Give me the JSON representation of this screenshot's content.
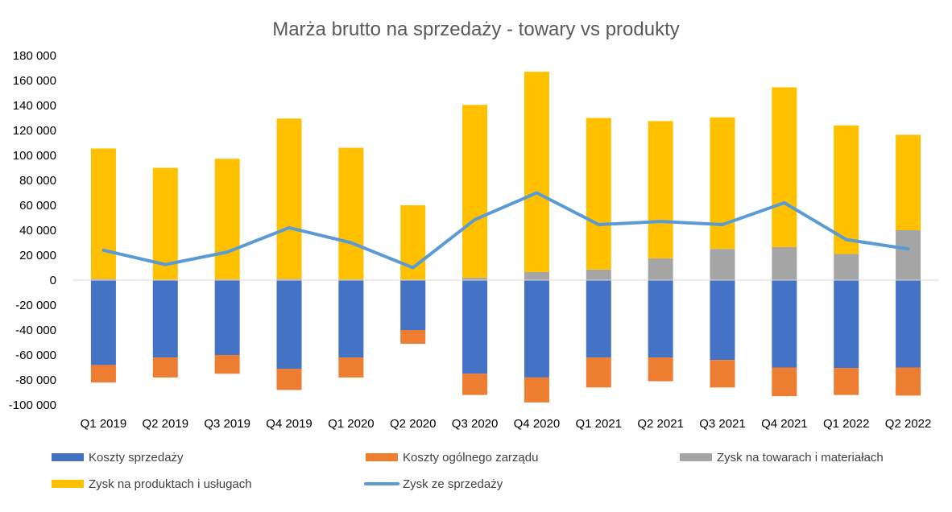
{
  "chart_data": {
    "type": "bar",
    "stacked": true,
    "title": "Marża brutto na sprzedaży - towary vs produkty",
    "xlabel": "",
    "ylabel": "",
    "ylim": [
      -100000,
      180000
    ],
    "yticks": [
      180000,
      160000,
      140000,
      120000,
      100000,
      80000,
      60000,
      40000,
      20000,
      0,
      -20000,
      -40000,
      -60000,
      -80000,
      -100000
    ],
    "ytick_labels": [
      "180 000",
      "160 000",
      "140 000",
      "120 000",
      "100 000",
      "80 000",
      "60 000",
      "40 000",
      "20 000",
      "0",
      "-20 000",
      "-40 000",
      "-60 000",
      "-80 000",
      "-100 000"
    ],
    "grid": false,
    "legend_position": "bottom",
    "categories": [
      "Q1 2019",
      "Q2 2019",
      "Q3 2019",
      "Q4 2019",
      "Q1 2020",
      "Q2 2020",
      "Q3 2020",
      "Q4 2020",
      "Q1 2021",
      "Q2 2021",
      "Q3 2021",
      "Q4 2021",
      "Q1 2022",
      "Q2 2022"
    ],
    "series": [
      {
        "name": "Koszty sprzedaży",
        "kind": "bar",
        "color": "#4472C4",
        "values": [
          -68000,
          -62000,
          -60000,
          -71000,
          -62000,
          -40000,
          -75000,
          -78000,
          -62000,
          -62000,
          -64000,
          -70000,
          -70500,
          -70000
        ]
      },
      {
        "name": "Koszty ogólnego zarządu",
        "kind": "bar",
        "color": "#ED7D31",
        "values": [
          -14000,
          -16000,
          -15000,
          -17000,
          -16000,
          -11000,
          -17000,
          -20000,
          -24000,
          -19000,
          -22000,
          -23000,
          -21500,
          -22500
        ]
      },
      {
        "name": "Zysk na towarach i materiałach",
        "kind": "bar",
        "color": "#A5A5A5",
        "values": [
          1000,
          500,
          800,
          1000,
          600,
          500,
          2000,
          6500,
          8500,
          17500,
          25000,
          26500,
          21000,
          40000
        ]
      },
      {
        "name": "Zysk na produktach i usługach",
        "kind": "bar",
        "color": "#FFC000",
        "values": [
          104500,
          89500,
          96500,
          128500,
          105500,
          59500,
          138500,
          160500,
          121500,
          110000,
          105500,
          128000,
          103000,
          76500
        ]
      },
      {
        "name": "Zysk ze sprzedaży",
        "kind": "line",
        "color": "#5B9BD5",
        "values": [
          24000,
          12500,
          22500,
          42000,
          30000,
          10000,
          48500,
          70000,
          44500,
          47000,
          44500,
          62000,
          32500,
          25000
        ]
      }
    ]
  }
}
